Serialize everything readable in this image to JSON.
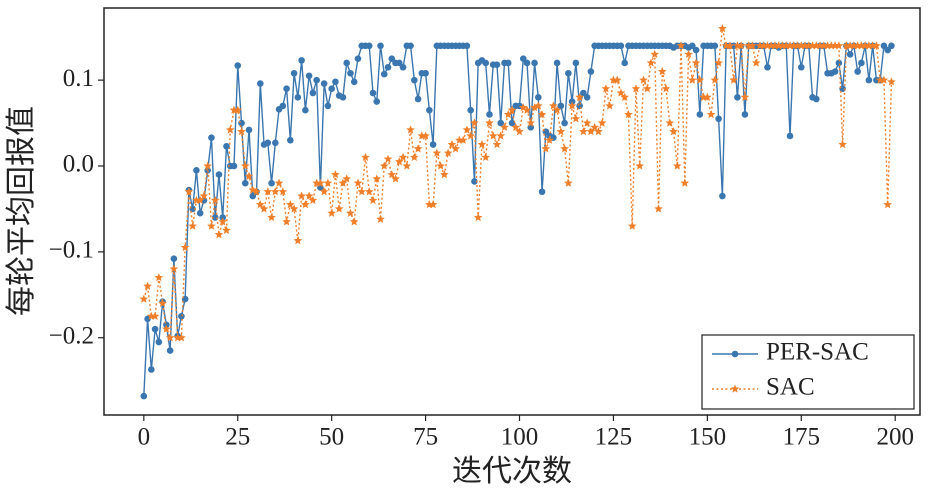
{
  "chart_data": {
    "type": "line",
    "xlabel": "迭代次数",
    "ylabel": "每轮平均回报值",
    "x": [
      0,
      1,
      2,
      3,
      4,
      5,
      6,
      7,
      8,
      9,
      10,
      11,
      12,
      13,
      14,
      15,
      16,
      17,
      18,
      19,
      20,
      21,
      22,
      23,
      24,
      25,
      26,
      27,
      28,
      29,
      30,
      31,
      32,
      33,
      34,
      35,
      36,
      37,
      38,
      39,
      40,
      41,
      42,
      43,
      44,
      45,
      46,
      47,
      48,
      49,
      50,
      51,
      52,
      53,
      54,
      55,
      56,
      57,
      58,
      59,
      60,
      61,
      62,
      63,
      64,
      65,
      66,
      67,
      68,
      69,
      70,
      71,
      72,
      73,
      74,
      75,
      76,
      77,
      78,
      79,
      80,
      81,
      82,
      83,
      84,
      85,
      86,
      87,
      88,
      89,
      90,
      91,
      92,
      93,
      94,
      95,
      96,
      97,
      98,
      99,
      100,
      101,
      102,
      103,
      104,
      105,
      106,
      107,
      108,
      109,
      110,
      111,
      112,
      113,
      114,
      115,
      116,
      117,
      118,
      119,
      120,
      121,
      122,
      123,
      124,
      125,
      126,
      127,
      128,
      129,
      130,
      131,
      132,
      133,
      134,
      135,
      136,
      137,
      138,
      139,
      140,
      141,
      142,
      143,
      144,
      145,
      146,
      147,
      148,
      149,
      150,
      151,
      152,
      153,
      154,
      155,
      156,
      157,
      158,
      159,
      160,
      161,
      162,
      163,
      164,
      165,
      166,
      167,
      168,
      169,
      170,
      171,
      172,
      173,
      174,
      175,
      176,
      177,
      178,
      179,
      180,
      181,
      182,
      183,
      184,
      185,
      186,
      187,
      188,
      189,
      190,
      191,
      192,
      193,
      194,
      195,
      196,
      197,
      198,
      199
    ],
    "series": [
      {
        "name": "PER-SAC",
        "color": "#3a76af",
        "marker": "circle",
        "linestyle": "solid",
        "values": [
          -0.268,
          -0.178,
          -0.237,
          -0.19,
          -0.205,
          -0.158,
          -0.185,
          -0.215,
          -0.108,
          -0.198,
          -0.175,
          -0.155,
          -0.028,
          -0.05,
          -0.005,
          -0.055,
          -0.04,
          -0.005,
          0.033,
          -0.06,
          -0.01,
          -0.06,
          0.023,
          0,
          0,
          0.117,
          0.05,
          -0.02,
          0.042,
          -0.035,
          -0.03,
          0.096,
          0.025,
          0.027,
          -0.02,
          0.027,
          0.066,
          0.07,
          0.09,
          0.03,
          0.108,
          0.08,
          0.123,
          0.065,
          0.105,
          0.085,
          0.1,
          -0.025,
          0.096,
          0.07,
          0.09,
          0.098,
          0.082,
          0.08,
          0.12,
          0.108,
          0.098,
          0.125,
          0.14,
          0.14,
          0.14,
          0.085,
          0.075,
          0.14,
          0.107,
          0.115,
          0.125,
          0.12,
          0.12,
          0.115,
          0.14,
          0.14,
          0.1,
          0.078,
          0.108,
          0.108,
          0.065,
          0.025,
          0.14,
          0.14,
          0.14,
          0.14,
          0.14,
          0.14,
          0.14,
          0.14,
          0.14,
          0.065,
          -0.018,
          0.12,
          0.123,
          0.12,
          0.06,
          0.118,
          0.118,
          0.05,
          0.12,
          0.12,
          0.05,
          0.07,
          0.07,
          0.125,
          0.12,
          0.045,
          0.12,
          0.08,
          -0.03,
          0.04,
          0.035,
          0.033,
          0.12,
          0.07,
          0.05,
          0.108,
          0.075,
          0.12,
          0.07,
          0.085,
          0.08,
          0.11,
          0.14,
          0.14,
          0.14,
          0.14,
          0.14,
          0.14,
          0.14,
          0.14,
          0.12,
          0.14,
          0.14,
          0.14,
          0.14,
          0.14,
          0.14,
          0.14,
          0.14,
          0.14,
          0.14,
          0.14,
          0.14,
          0.138,
          0.14,
          0.14,
          0.14,
          0.138,
          0.14,
          0.135,
          0.06,
          0.14,
          0.14,
          0.14,
          0.14,
          0.055,
          -0.035,
          0.14,
          0.14,
          0.14,
          0.08,
          0.14,
          0.06,
          0.14,
          0.14,
          0.14,
          0.14,
          0.14,
          0.115,
          0.14,
          0.14,
          0.138,
          0.14,
          0.14,
          0.035,
          0.14,
          0.14,
          0.115,
          0.14,
          0.14,
          0.08,
          0.078,
          0.14,
          0.14,
          0.108,
          0.108,
          0.11,
          0.12,
          0.09,
          0.14,
          0.13,
          0.14,
          0.11,
          0.12,
          0.14,
          0.1,
          0.14,
          0.1,
          0.1,
          0.14,
          0.135,
          0.14
        ]
      },
      {
        "name": "SAC",
        "color": "#ef7f2a",
        "marker": "star",
        "linestyle": "dotted",
        "values": [
          -0.155,
          -0.14,
          -0.175,
          -0.175,
          -0.13,
          -0.16,
          -0.19,
          -0.2,
          -0.12,
          -0.2,
          -0.2,
          -0.095,
          -0.03,
          -0.07,
          -0.04,
          -0.04,
          -0.035,
          0,
          -0.07,
          -0.04,
          -0.08,
          -0.065,
          -0.075,
          0.042,
          0.065,
          0.065,
          0.04,
          0,
          -0.012,
          -0.028,
          -0.03,
          -0.045,
          -0.05,
          -0.03,
          -0.06,
          -0.03,
          -0.02,
          -0.03,
          -0.065,
          -0.045,
          -0.05,
          -0.087,
          -0.035,
          -0.045,
          -0.035,
          -0.04,
          -0.02,
          -0.02,
          -0.03,
          -0.02,
          -0.055,
          -0.01,
          -0.05,
          -0.02,
          -0.015,
          -0.055,
          -0.065,
          -0.02,
          -0.03,
          0.01,
          -0.03,
          -0.04,
          -0.015,
          -0.062,
          0,
          0.008,
          -0.01,
          -0.015,
          0.005,
          0.01,
          0,
          0.042,
          0.01,
          0.02,
          0.035,
          0.035,
          -0.045,
          -0.045,
          0.015,
          0,
          -0.01,
          0.015,
          0.025,
          0.02,
          0.03,
          0.03,
          0.042,
          0.035,
          0.05,
          -0.06,
          0.025,
          0.01,
          0.05,
          0.035,
          0.025,
          0.035,
          0.045,
          0.06,
          0.065,
          0.045,
          0.04,
          0.068,
          0.065,
          0.05,
          0.068,
          0.07,
          0.06,
          0.02,
          0.03,
          0.07,
          0.065,
          0.04,
          0.02,
          -0.02,
          0.07,
          0.055,
          0.08,
          0.04,
          0.05,
          0.04,
          0.045,
          0.04,
          0.05,
          0.09,
          0.07,
          0.1,
          0.1,
          0.085,
          0.08,
          0.06,
          -0.07,
          0.09,
          0,
          0.1,
          0.09,
          0.12,
          0.13,
          -0.05,
          0.11,
          0.09,
          0.05,
          0.04,
          0,
          0.14,
          -0.02,
          0.13,
          0.1,
          0.12,
          0.1,
          0.08,
          0.08,
          0.06,
          0.1,
          0.12,
          0.16,
          0.14,
          0.14,
          0.1,
          0.14,
          0.14,
          0.08,
          0.14,
          0.14,
          0.12,
          0.14,
          0.14,
          0.14,
          0.14,
          0.14,
          0.14,
          0.14,
          0.14,
          0.14,
          0.14,
          0.14,
          0.14,
          0.14,
          0.14,
          0.14,
          0.14,
          0.14,
          0.14,
          0.14,
          0.14,
          0.14,
          0.14,
          0.025,
          0.14,
          0.14,
          0.14,
          0.14,
          0.14,
          0.14,
          0.14,
          0.14,
          0.14,
          0.1,
          0.1,
          -0.045,
          0.098
        ]
      }
    ],
    "xlim": [
      -10.6,
      206.6
    ],
    "ylim": [
      -0.29,
      0.184
    ],
    "xticks": [
      0,
      25,
      50,
      75,
      100,
      125,
      150,
      175,
      200
    ],
    "yticks": [
      {
        "value": -0.2,
        "label": "−0.2"
      },
      {
        "value": -0.1,
        "label": "−0.1"
      },
      {
        "value": 0,
        "label": "0.0"
      },
      0.1
    ],
    "legend": "lower right",
    "grid": false
  }
}
